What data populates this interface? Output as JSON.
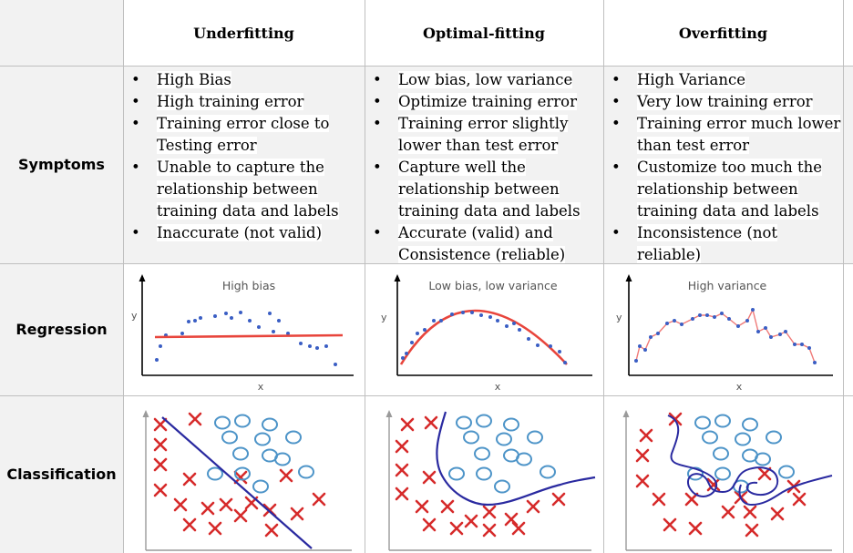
{
  "columns": [
    "Underfitting",
    "Optimal-fitting",
    "Overfitting"
  ],
  "rows": [
    "Symptoms",
    "Regression",
    "Classification"
  ],
  "symptoms": {
    "underfitting": [
      "High Bias",
      "High training error",
      "Training error close to Testing error",
      "Unable to capture the relationship between training data and labels",
      "Inaccurate (not valid)"
    ],
    "optimal": [
      "Low bias, low variance",
      "Optimize training error",
      "Training error slightly lower than test error",
      "Capture well the relationship between training data and labels",
      "Accurate (valid) and Consistence (reliable)"
    ],
    "overfitting": [
      "High Variance",
      "Very low training error",
      "Training error much lower than test error",
      "Customize too much the relationship between training data and labels",
      "Inconsistence (not reliable)"
    ]
  },
  "regression": {
    "titles": [
      "High bias",
      "Low bias, low variance",
      "High variance"
    ],
    "xlabel": "x",
    "ylabel": "y"
  },
  "colors": {
    "fit_red": "#e8453c",
    "point_blue": "#3a5ec4",
    "boundary_blue": "#2a2aa0",
    "circle_blue": "#4d94c8",
    "cross_red": "#d62a2a"
  },
  "icons": [
    "cross-marker",
    "circle-marker"
  ]
}
